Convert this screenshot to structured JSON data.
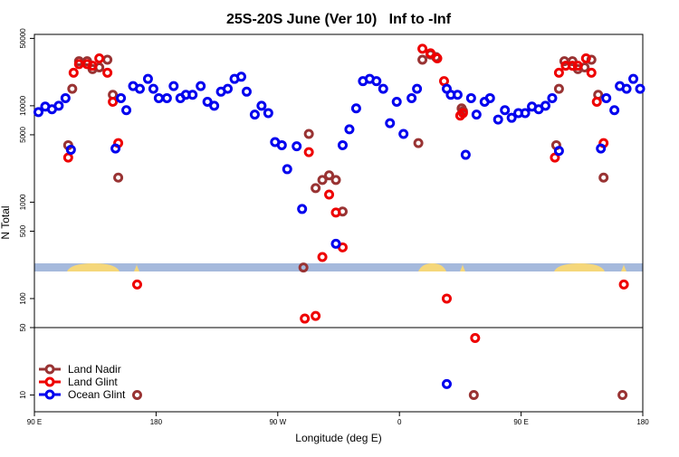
{
  "chart_data": {
    "type": "scatter",
    "title": "25S-20S June (Ver 10)   Inf to -Inf",
    "x_label": "Longitude (deg E)",
    "y_label": "N Total",
    "xlim": [
      90,
      540
    ],
    "xticks": [
      {
        "value": 90,
        "label": "90 E"
      },
      {
        "value": 180,
        "label": "180"
      },
      {
        "value": 270,
        "label": "90 W"
      },
      {
        "value": 360,
        "label": "0"
      },
      {
        "value": 450,
        "label": "90 E"
      },
      {
        "value": 540,
        "label": "180"
      }
    ],
    "ylim": [
      6.7,
      55000
    ],
    "yticks": [
      10,
      50,
      100,
      500,
      1000,
      5000,
      10000,
      50000
    ],
    "log_y": true,
    "hline": 50,
    "legend": "bottom-left",
    "series": [
      {
        "name": "Land Nadir",
        "color": "#993333",
        "x": [
          115,
          118,
          123,
          129,
          133,
          138,
          144,
          148,
          152,
          289,
          293,
          298,
          303,
          308,
          313,
          318,
          374,
          377,
          383,
          387,
          406,
          407,
          415,
          476,
          478,
          482,
          488,
          492,
          497,
          502,
          507,
          511,
          525,
          166
        ],
        "values": [
          3900,
          15000,
          29000,
          29000,
          24000,
          25000,
          30000,
          13000,
          1800,
          210,
          5100,
          1400,
          1700,
          1900,
          1700,
          800,
          4100,
          30000,
          34000,
          32000,
          9400,
          8800,
          10,
          3900,
          15000,
          29000,
          29000,
          24000,
          25000,
          30000,
          13000,
          1800,
          10,
          10
        ]
      },
      {
        "name": "Land Glint",
        "color": "#ee0000",
        "x": [
          115,
          119,
          123,
          129,
          133,
          138,
          144,
          148,
          152,
          166,
          290,
          293,
          298,
          303,
          308,
          313,
          318,
          377,
          383,
          388,
          393,
          395,
          405,
          407,
          416,
          475,
          478,
          483,
          488,
          492,
          498,
          502,
          506,
          511,
          526
        ],
        "values": [
          2900,
          22000,
          27000,
          27000,
          26000,
          31000,
          22000,
          11000,
          4100,
          140,
          62,
          3300,
          66,
          270,
          1200,
          780,
          340,
          39000,
          35000,
          31000,
          18000,
          100,
          7900,
          8400,
          39,
          2900,
          22000,
          26000,
          26000,
          26000,
          31000,
          22000,
          11000,
          4100,
          140
        ]
      },
      {
        "name": "Ocean Glint",
        "color": "#0000ee",
        "x": [
          93,
          98,
          103,
          108,
          113,
          117,
          150,
          154,
          158,
          163,
          168,
          174,
          178,
          182,
          188,
          193,
          198,
          202,
          207,
          213,
          218,
          223,
          228,
          233,
          238,
          243,
          247,
          253,
          258,
          263,
          268,
          273,
          277,
          284,
          288,
          313,
          318,
          323,
          328,
          333,
          338,
          343,
          348,
          353,
          358,
          363,
          369,
          373,
          395,
          398,
          403,
          409,
          413,
          417,
          423,
          427,
          433,
          438,
          443,
          448,
          453,
          458,
          463,
          468,
          473,
          478,
          509,
          513,
          519,
          523,
          528,
          533,
          538,
          395
        ],
        "values": [
          8600,
          9800,
          9200,
          10000,
          12000,
          3500,
          3600,
          12000,
          9000,
          16000,
          15000,
          19000,
          15000,
          12000,
          12000,
          16000,
          12000,
          13000,
          13000,
          16000,
          11000,
          10000,
          14000,
          15000,
          19000,
          20000,
          14000,
          8100,
          10000,
          8400,
          4200,
          3900,
          2200,
          3800,
          850,
          370,
          3900,
          5700,
          9400,
          18000,
          19000,
          18000,
          15000,
          6600,
          11000,
          5100,
          12000,
          15000,
          15000,
          13000,
          13000,
          3100,
          12000,
          8100,
          11000,
          12000,
          7200,
          9000,
          7500,
          8400,
          8400,
          9800,
          9200,
          10000,
          12000,
          3400,
          3600,
          12000,
          9000,
          16000,
          15000,
          19000,
          15000,
          13
        ]
      }
    ]
  }
}
